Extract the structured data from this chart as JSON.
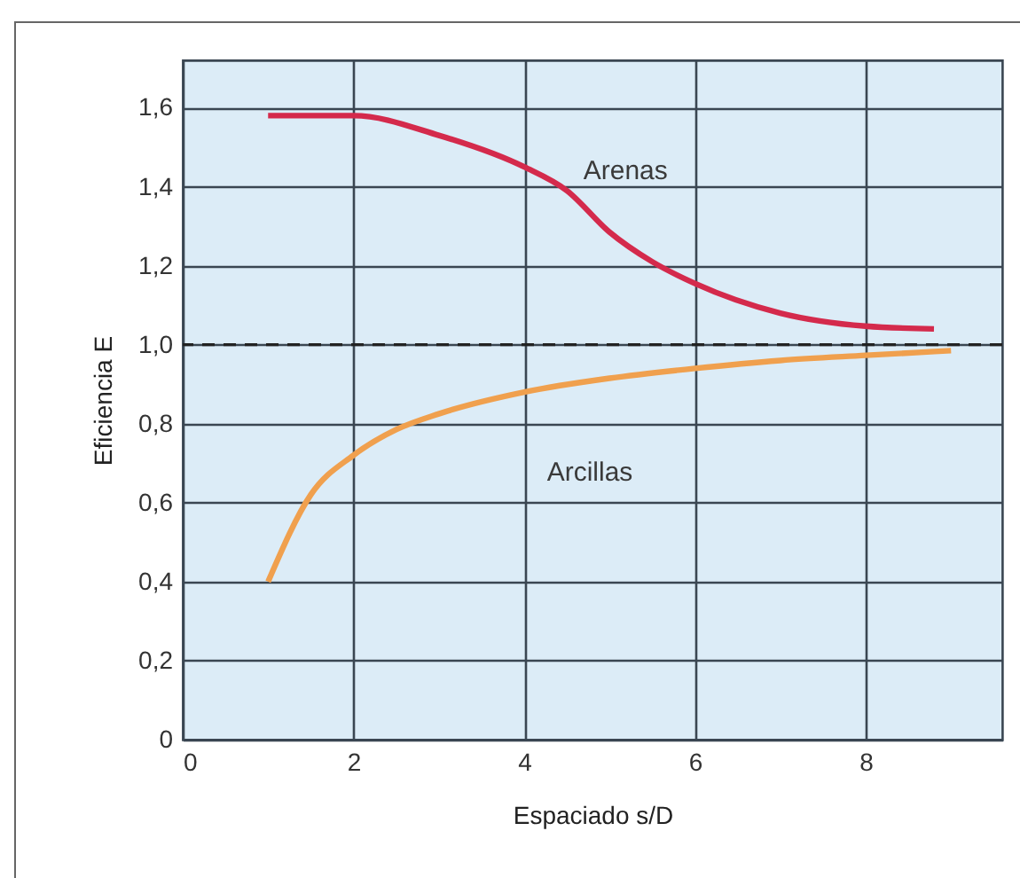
{
  "chart_data": {
    "type": "line",
    "xlabel": "Espaciado s/D",
    "ylabel": "Eficiencia E",
    "xlim": [
      0,
      9.6
    ],
    "xticks": [
      0,
      2,
      4,
      6,
      8
    ],
    "ylim": [
      0,
      1.72
    ],
    "yticks": [
      0,
      {
        "value": 0.2,
        "label": "0,2"
      },
      {
        "value": 0.4,
        "label": "0,4"
      },
      {
        "value": 0.6,
        "label": "0,6"
      },
      {
        "value": 0.8,
        "label": "0,8"
      },
      {
        "value": 1.0,
        "label": "1,0"
      },
      {
        "value": 1.2,
        "label": "1,2"
      },
      {
        "value": 1.4,
        "label": "1,4"
      },
      {
        "value": 1.6,
        "label": "1,6"
      }
    ],
    "grid": true,
    "legend": false,
    "ref_lines": [
      {
        "axis": "y",
        "value": 1.0,
        "label": null,
        "color": "#222222",
        "line_style": "dashed"
      }
    ],
    "series": [
      {
        "name": "Arenas",
        "color": "#d42a4c",
        "x": [
          1,
          2,
          3,
          4,
          4.5,
          5,
          5.5,
          6,
          7,
          8,
          8.8
        ],
        "values": [
          1.58,
          1.58,
          1.53,
          1.45,
          1.39,
          1.285,
          1.21,
          1.155,
          1.08,
          1.047,
          1.04
        ]
      },
      {
        "name": "Arcillas",
        "color": "#f0a04e",
        "x": [
          1,
          1.5,
          2,
          2.5,
          3,
          4,
          5,
          6,
          7,
          8,
          9
        ],
        "values": [
          0.4,
          0.62,
          0.72,
          0.785,
          0.825,
          0.88,
          0.915,
          0.94,
          0.96,
          0.973,
          0.985
        ]
      }
    ]
  }
}
